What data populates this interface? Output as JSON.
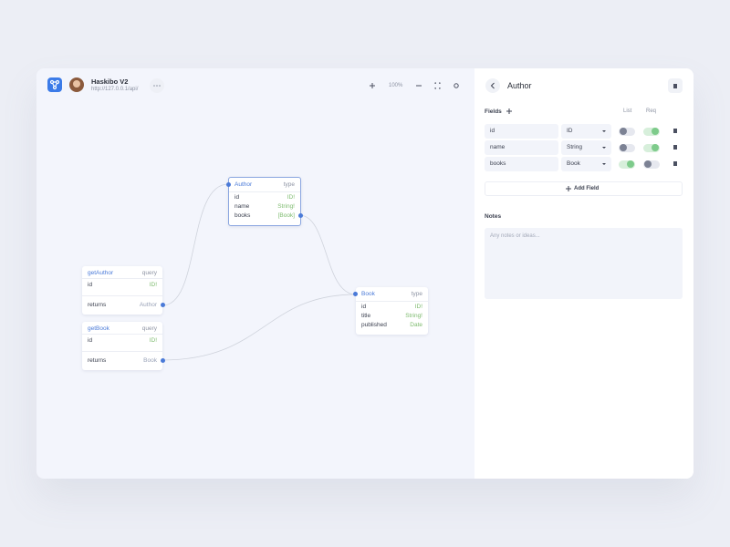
{
  "header": {
    "app_name": "Haskibo V2",
    "url": "http://127.0.0.1/api/",
    "zoom": "100%"
  },
  "nodes": [
    {
      "title": "Author",
      "kind": "type",
      "fields": [
        {
          "name": "id",
          "type": "ID!"
        },
        {
          "name": "name",
          "type": "String!"
        },
        {
          "name": "books",
          "type": "[Book]"
        }
      ]
    },
    {
      "title": "Book",
      "kind": "type",
      "fields": [
        {
          "name": "id",
          "type": "ID!"
        },
        {
          "name": "title",
          "type": "String!"
        },
        {
          "name": "published",
          "type": "Date"
        }
      ]
    },
    {
      "title": "getAuthor",
      "kind": "query",
      "fields": [
        {
          "name": "id",
          "type": "ID!"
        }
      ],
      "returns": {
        "label": "returns",
        "type": "Author"
      }
    },
    {
      "title": "getBook",
      "kind": "query",
      "fields": [
        {
          "name": "id",
          "type": "ID!"
        }
      ],
      "returns": {
        "label": "returns",
        "type": "Book"
      }
    }
  ],
  "panel": {
    "title": "Author",
    "fields_label": "Fields",
    "list_label": "List",
    "req_label": "Req",
    "rows": [
      {
        "name": "id",
        "type": "ID",
        "list": false,
        "req": true
      },
      {
        "name": "name",
        "type": "String",
        "list": false,
        "req": true
      },
      {
        "name": "books",
        "type": "Book",
        "list": true,
        "req": false
      }
    ],
    "add_field": "Add Field",
    "notes_label": "Notes",
    "notes_placeholder": "Any notes or ideas..."
  }
}
